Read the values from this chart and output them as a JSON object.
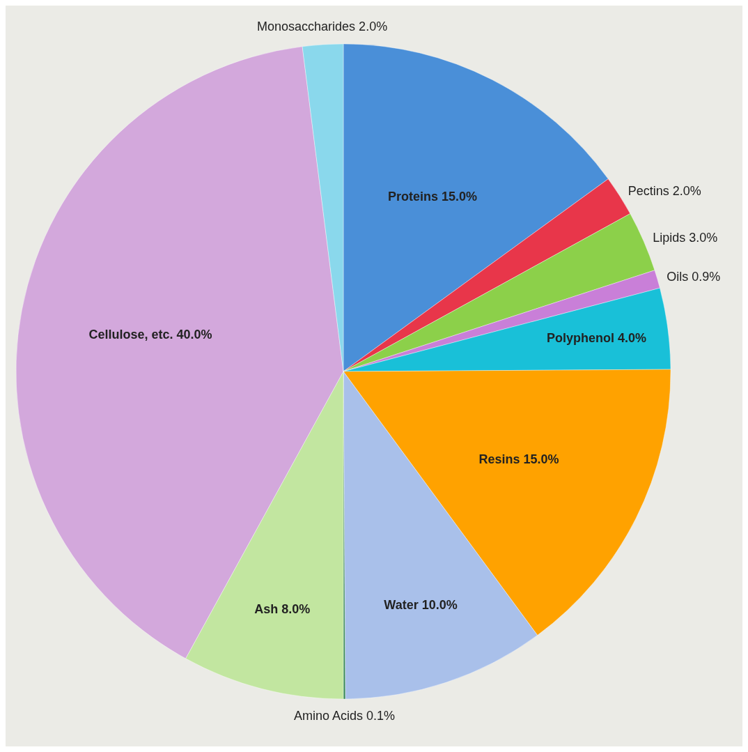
{
  "chart_data": {
    "type": "pie",
    "categories": [
      "Proteins",
      "Pectins",
      "Lipids",
      "Oils",
      "Polyphenol",
      "Resins",
      "Water",
      "Amino Acids",
      "Ash",
      "Cellulose, etc.",
      "Monosaccharides"
    ],
    "values": [
      15,
      2,
      3,
      0.9,
      4,
      15,
      10,
      0.1,
      8,
      40,
      2
    ],
    "value_labels": [
      "15.0%",
      "2.0%",
      "3.0%",
      "0.9%",
      "4.0%",
      "15.0%",
      "10.0%",
      "0.1%",
      "8.0%",
      "40.0%",
      "2.0%"
    ],
    "colors": [
      "#4a8fd8",
      "#e8364a",
      "#8cd04a",
      "#c97fd8",
      "#19c0d8",
      "#ffa200",
      "#a9c0ea",
      "#3a8a5a",
      "#c2e6a0",
      "#d3a8dc",
      "#8ad8ec"
    ],
    "legend": false
  }
}
